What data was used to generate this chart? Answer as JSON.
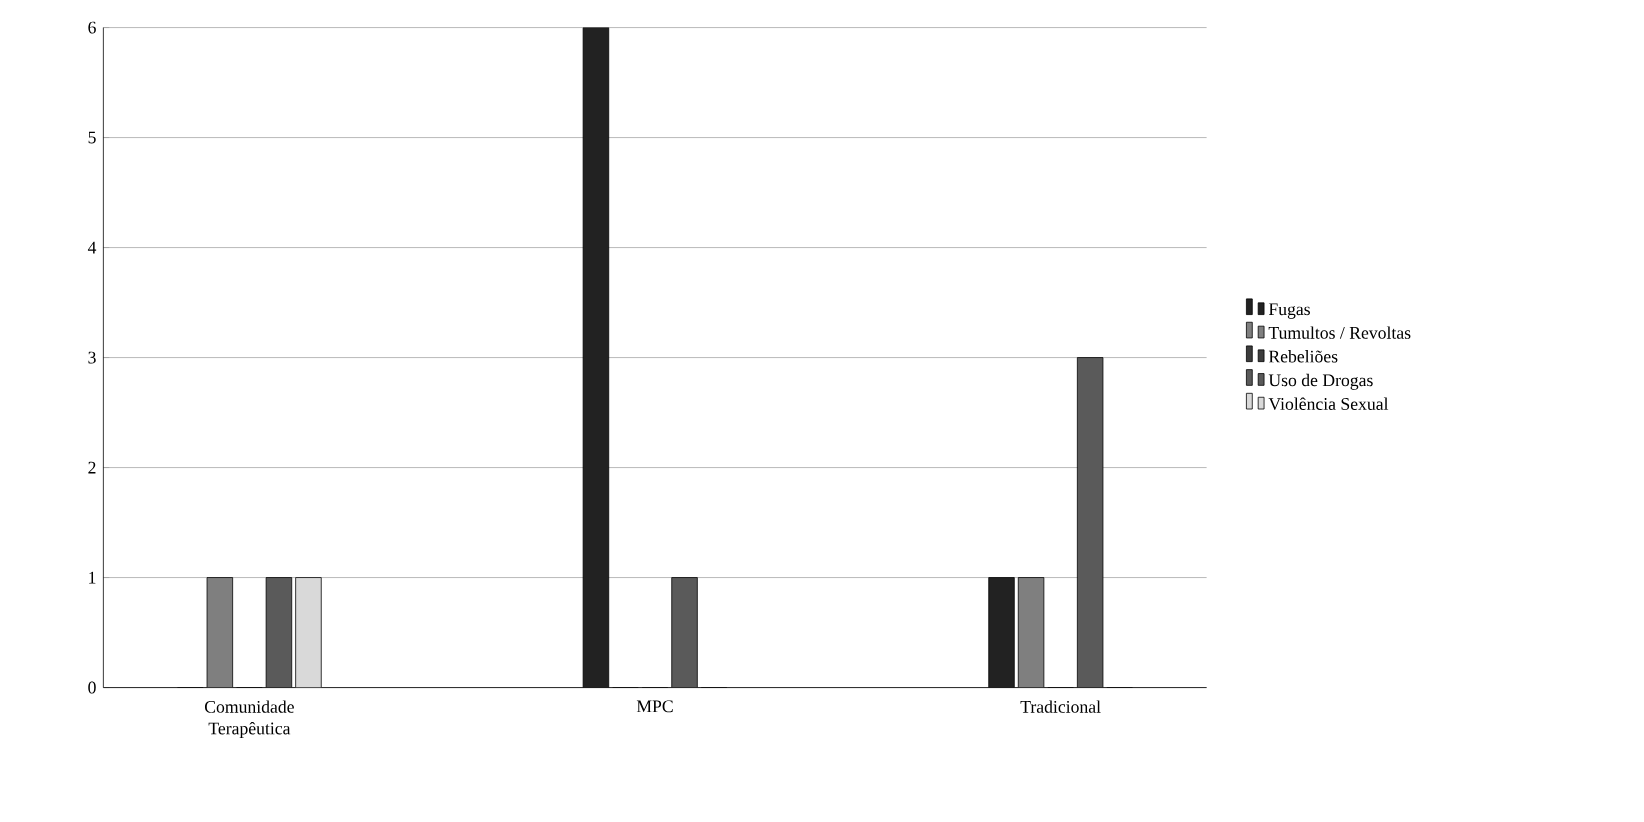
{
  "chart_data": {
    "type": "bar",
    "categories": [
      "Comunidade Terapêutica",
      "MPC",
      "Tradicional"
    ],
    "series": [
      {
        "name": "Fugas",
        "color": "#222222",
        "values": [
          0,
          6,
          1
        ]
      },
      {
        "name": "Tumultos / Revoltas",
        "color": "#7f7f7f",
        "values": [
          1,
          0,
          1
        ]
      },
      {
        "name": "Rebeliões",
        "color": "#3c3c3c",
        "values": [
          0,
          0,
          0
        ]
      },
      {
        "name": "Uso de Drogas",
        "color": "#5a5a5a",
        "values": [
          1,
          1,
          3
        ]
      },
      {
        "name": "Violência Sexual",
        "color": "#d9d9d9",
        "values": [
          1,
          0,
          0
        ]
      }
    ],
    "ylim": [
      0,
      6
    ],
    "yticks": [
      0,
      1,
      2,
      3,
      4,
      5,
      6
    ],
    "grid": "y",
    "legend": "right"
  }
}
